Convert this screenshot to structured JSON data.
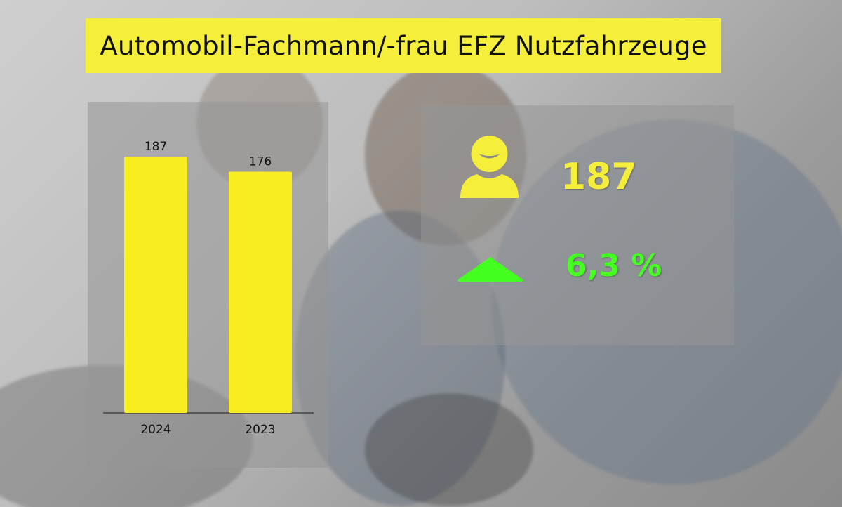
{
  "title": "Automobil-Fachmann/-frau EFZ Nutzfahrzeuge",
  "chart_data": {
    "type": "bar",
    "categories": [
      "2024",
      "2023"
    ],
    "values": [
      187,
      176
    ],
    "ylim": [
      0,
      200
    ],
    "grid": false,
    "colors": {
      "bar": "#f8ee1f",
      "label": "#111111",
      "axis": "#333333"
    }
  },
  "kpi": {
    "count": "187",
    "change": "6,3 %",
    "icons": {
      "person": "person-icon",
      "trend": "triangle-up-icon"
    },
    "colors": {
      "count": "#f5ef3b",
      "change": "#44ff1f"
    }
  }
}
